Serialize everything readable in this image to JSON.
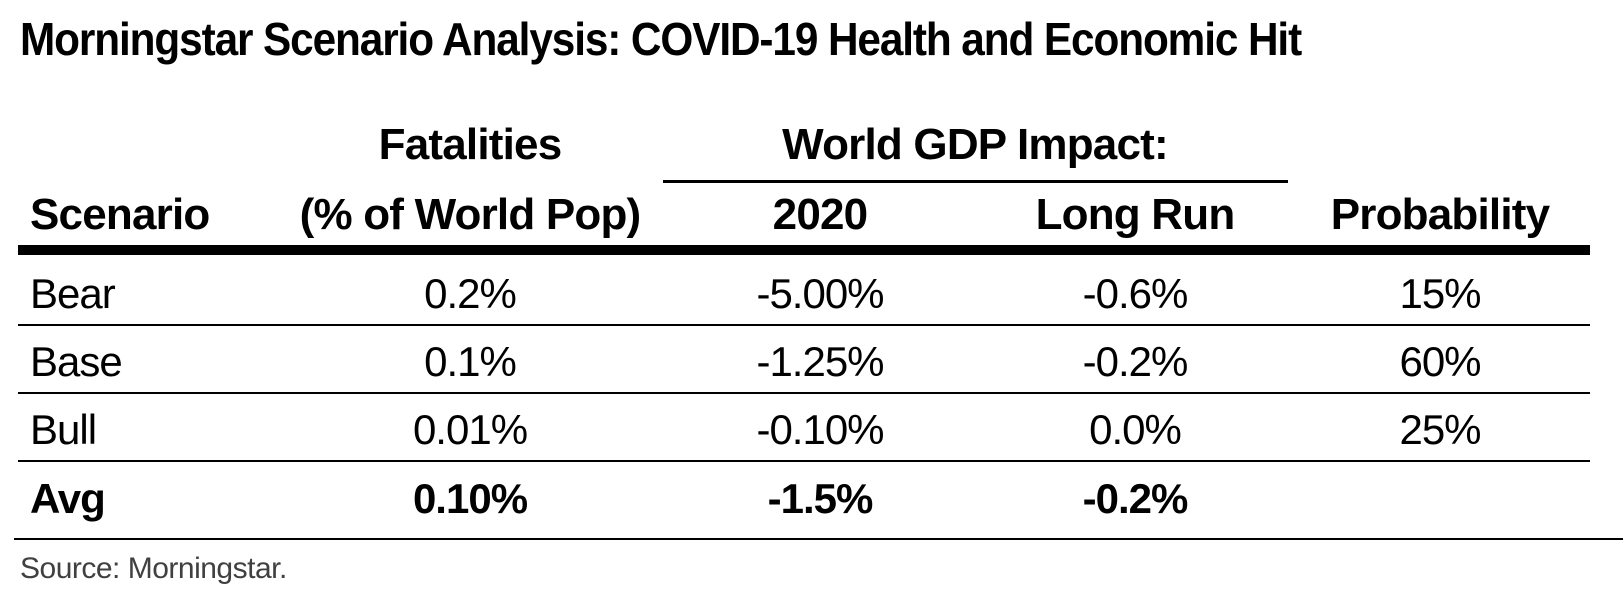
{
  "title": "Morningstar Scenario Analysis: COVID-19 Health and Economic Hit",
  "header": {
    "fatalities_top": "Fatalities",
    "gdp_group": "World GDP Impact:",
    "scenario": "Scenario",
    "fatalities_bottom": "(% of World Pop)",
    "gdp_2020": "2020",
    "gdp_long_run": "Long Run",
    "probability": "Probability"
  },
  "rows": [
    {
      "scenario": "Bear",
      "fatalities": "0.2%",
      "gdp_2020": "-5.00%",
      "long_run": "-0.6%",
      "probability": "15%"
    },
    {
      "scenario": "Base",
      "fatalities": "0.1%",
      "gdp_2020": "-1.25%",
      "long_run": "-0.2%",
      "probability": "60%"
    },
    {
      "scenario": "Bull",
      "fatalities": "0.01%",
      "gdp_2020": "-0.10%",
      "long_run": "0.0%",
      "probability": "25%"
    }
  ],
  "avg": {
    "scenario": "Avg",
    "fatalities": "0.10%",
    "gdp_2020": "-1.5%",
    "long_run": "-0.2%",
    "probability": ""
  },
  "source": "Source: Morningstar."
}
